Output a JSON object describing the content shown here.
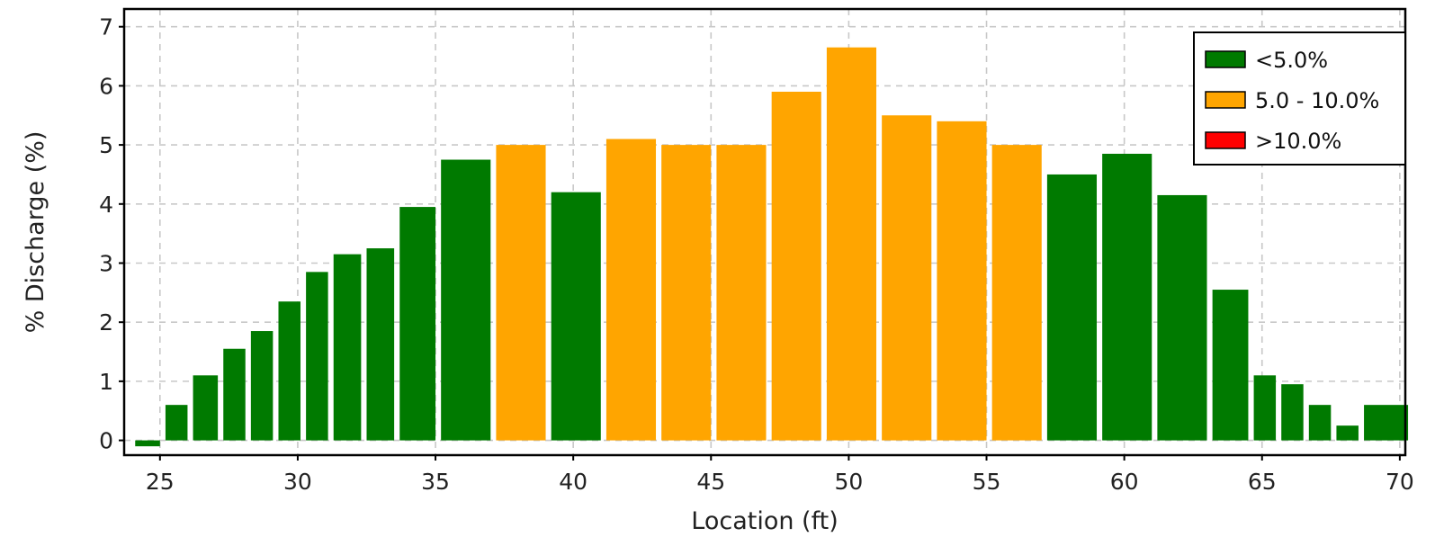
{
  "chart_data": {
    "type": "bar",
    "xlabel": "Location (ft)",
    "ylabel": "% Discharge (%)",
    "xlim": [
      23.7,
      70.2
    ],
    "ylim": [
      -0.25,
      7.3
    ],
    "xticks": [
      25,
      30,
      35,
      40,
      45,
      50,
      55,
      60,
      65,
      70
    ],
    "yticks": [
      0,
      1,
      2,
      3,
      4,
      5,
      6,
      7
    ],
    "grid": true,
    "legend_position": "top-right",
    "legend": [
      {
        "label": "<5.0%",
        "color": "#007a00"
      },
      {
        "label": "5.0 - 10.0%",
        "color": "#ffa500"
      },
      {
        "label": ">10.0%",
        "color": "#ff0000"
      }
    ],
    "bars": [
      {
        "x0": 24.1,
        "x1": 25.0,
        "value": -0.1,
        "class": "<5.0%"
      },
      {
        "x0": 25.2,
        "x1": 26.0,
        "value": 0.6,
        "class": "<5.0%"
      },
      {
        "x0": 26.2,
        "x1": 27.1,
        "value": 1.1,
        "class": "<5.0%"
      },
      {
        "x0": 27.3,
        "x1": 28.1,
        "value": 1.55,
        "class": "<5.0%"
      },
      {
        "x0": 28.3,
        "x1": 29.1,
        "value": 1.85,
        "class": "<5.0%"
      },
      {
        "x0": 29.3,
        "x1": 30.1,
        "value": 2.35,
        "class": "<5.0%"
      },
      {
        "x0": 30.3,
        "x1": 31.1,
        "value": 2.85,
        "class": "<5.0%"
      },
      {
        "x0": 31.3,
        "x1": 32.3,
        "value": 3.15,
        "class": "<5.0%"
      },
      {
        "x0": 32.5,
        "x1": 33.5,
        "value": 3.25,
        "class": "<5.0%"
      },
      {
        "x0": 33.7,
        "x1": 35.0,
        "value": 3.95,
        "class": "<5.0%"
      },
      {
        "x0": 35.2,
        "x1": 37.0,
        "value": 4.75,
        "class": "<5.0%"
      },
      {
        "x0": 37.2,
        "x1": 39.0,
        "value": 5.0,
        "class": "5.0 - 10.0%"
      },
      {
        "x0": 39.2,
        "x1": 41.0,
        "value": 4.2,
        "class": "<5.0%"
      },
      {
        "x0": 41.2,
        "x1": 43.0,
        "value": 5.1,
        "class": "5.0 - 10.0%"
      },
      {
        "x0": 43.2,
        "x1": 45.0,
        "value": 5.0,
        "class": "5.0 - 10.0%"
      },
      {
        "x0": 45.2,
        "x1": 47.0,
        "value": 5.0,
        "class": "5.0 - 10.0%"
      },
      {
        "x0": 47.2,
        "x1": 49.0,
        "value": 5.9,
        "class": "5.0 - 10.0%"
      },
      {
        "x0": 49.2,
        "x1": 51.0,
        "value": 6.65,
        "class": "5.0 - 10.0%"
      },
      {
        "x0": 51.2,
        "x1": 53.0,
        "value": 5.5,
        "class": "5.0 - 10.0%"
      },
      {
        "x0": 53.2,
        "x1": 55.0,
        "value": 5.4,
        "class": "5.0 - 10.0%"
      },
      {
        "x0": 55.2,
        "x1": 57.0,
        "value": 5.0,
        "class": "5.0 - 10.0%"
      },
      {
        "x0": 57.2,
        "x1": 59.0,
        "value": 4.5,
        "class": "<5.0%"
      },
      {
        "x0": 59.2,
        "x1": 61.0,
        "value": 4.85,
        "class": "<5.0%"
      },
      {
        "x0": 61.2,
        "x1": 63.0,
        "value": 4.15,
        "class": "<5.0%"
      },
      {
        "x0": 63.2,
        "x1": 64.5,
        "value": 2.55,
        "class": "<5.0%"
      },
      {
        "x0": 64.7,
        "x1": 65.5,
        "value": 1.1,
        "class": "<5.0%"
      },
      {
        "x0": 65.7,
        "x1": 66.5,
        "value": 0.95,
        "class": "<5.0%"
      },
      {
        "x0": 66.7,
        "x1": 67.5,
        "value": 0.6,
        "class": "<5.0%"
      },
      {
        "x0": 67.7,
        "x1": 68.5,
        "value": 0.25,
        "class": "<5.0%"
      },
      {
        "x0": 68.7,
        "x1": 70.3,
        "value": 0.6,
        "class": "<5.0%"
      }
    ]
  }
}
